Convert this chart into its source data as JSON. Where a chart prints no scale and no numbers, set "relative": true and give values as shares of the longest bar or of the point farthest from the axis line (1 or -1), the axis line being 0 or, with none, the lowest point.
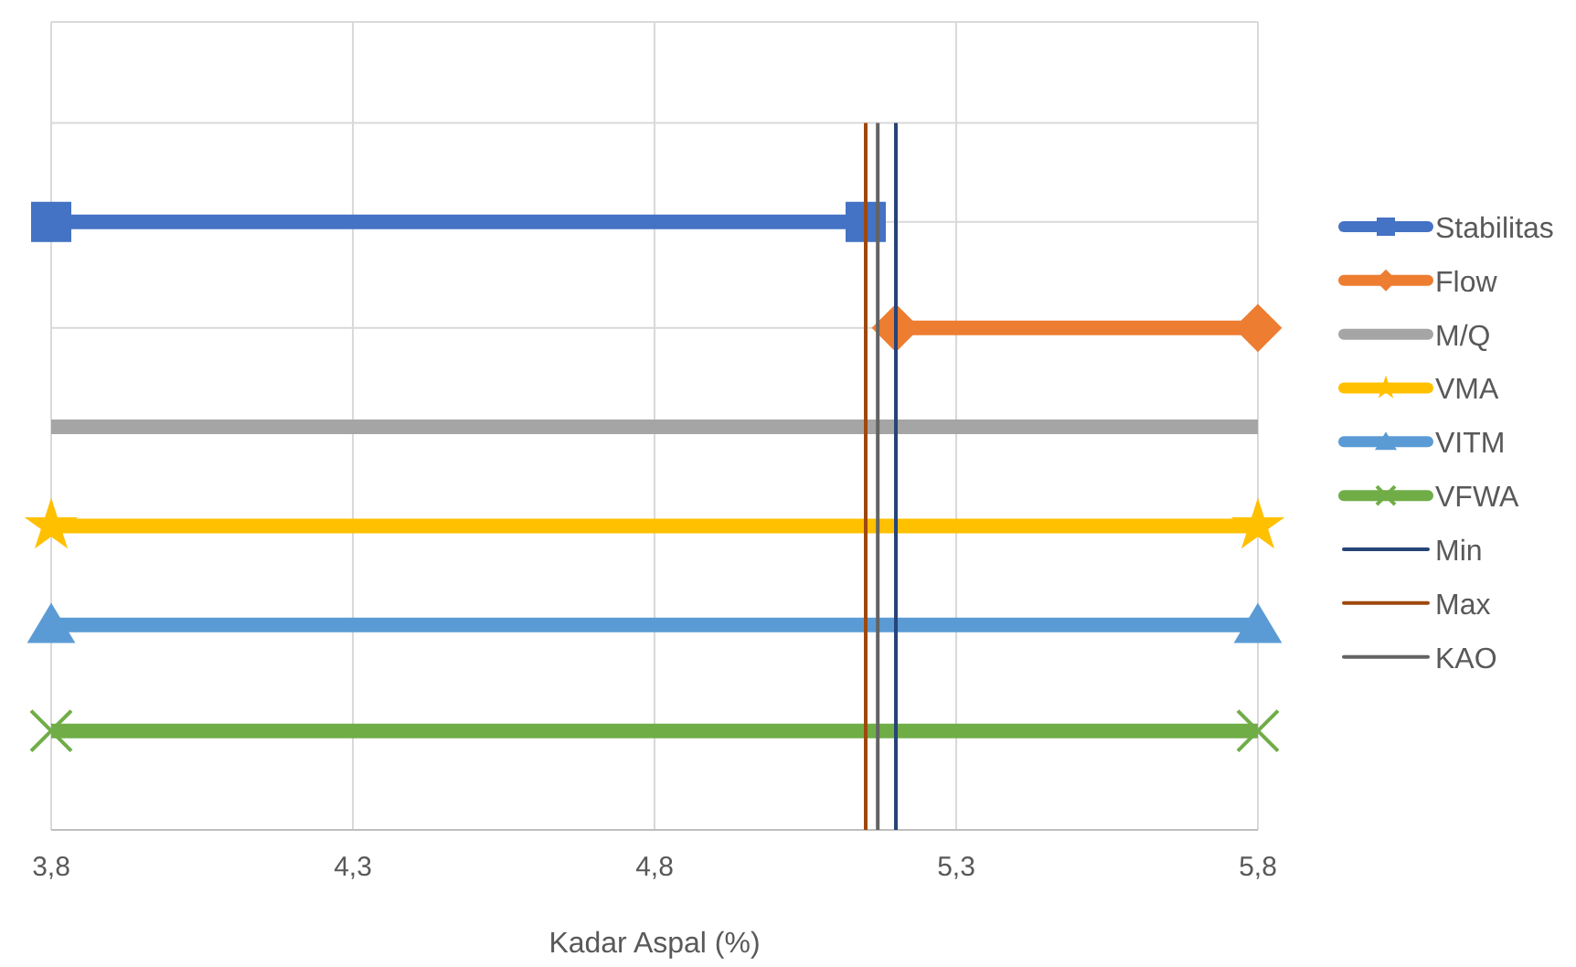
{
  "chart_data": {
    "type": "line",
    "xlabel": "Kadar Aspal (%)",
    "xlim": [
      3.8,
      5.8
    ],
    "xticks": [
      {
        "value": 3.8,
        "label": "3,8"
      },
      {
        "value": 4.3,
        "label": "4,3"
      },
      {
        "value": 4.8,
        "label": "4,8"
      },
      {
        "value": 5.3,
        "label": "5,3"
      },
      {
        "value": 5.8,
        "label": "5,8"
      }
    ],
    "relative": true,
    "grid": true,
    "legend": "right",
    "line_style": "solid",
    "series": [
      {
        "name": "Stabilitas",
        "color": "#4472c4",
        "x": [
          3.8,
          5.15
        ],
        "values": [
          0.86,
          0.86
        ],
        "marker": "square"
      },
      {
        "name": "Flow",
        "color": "#ed7d31",
        "x": [
          5.2,
          5.8
        ],
        "values": [
          0.71,
          0.71
        ],
        "marker": "diamond"
      },
      {
        "name": "M/Q",
        "color": "#a5a5a5",
        "x": [
          3.8,
          5.8
        ],
        "values": [
          0.57,
          0.57
        ],
        "marker": "none"
      },
      {
        "name": "VMA",
        "color": "#ffc000",
        "x": [
          3.8,
          5.8
        ],
        "values": [
          0.43,
          0.43
        ],
        "marker": "star"
      },
      {
        "name": "VITM",
        "color": "#5b9bd5",
        "x": [
          3.8,
          5.8
        ],
        "values": [
          0.29,
          0.29
        ],
        "marker": "triangle"
      },
      {
        "name": "VFWA",
        "color": "#70ad47",
        "x": [
          3.8,
          5.8
        ],
        "values": [
          0.14,
          0.14
        ],
        "marker": "cross"
      },
      {
        "name": "Min",
        "color": "#264478",
        "x": [
          5.2,
          5.2
        ],
        "values": [
          0,
          1
        ],
        "marker": "none"
      },
      {
        "name": "Max",
        "color": "#9e480e",
        "x": [
          5.15,
          5.15
        ],
        "values": [
          0,
          1
        ],
        "marker": "none"
      },
      {
        "name": "KAO",
        "color": "#636363",
        "x": [
          5.17,
          5.17
        ],
        "values": [
          0,
          1
        ],
        "marker": "none"
      }
    ]
  }
}
